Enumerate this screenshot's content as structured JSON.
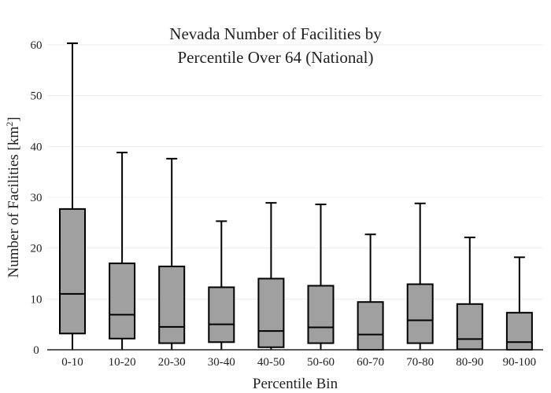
{
  "chart_data": {
    "type": "box",
    "title": [
      "Nevada Number of Facilities by",
      "Percentile Over 64 (National)"
    ],
    "xlabel": "Percentile Bin",
    "ylabel": "Number of Facilities  [km",
    "ylabel_sup": "2",
    "ylabel_close": "]",
    "ylim": [
      0,
      60
    ],
    "yticks": [
      0,
      10,
      20,
      30,
      40,
      50,
      60
    ],
    "grid": true,
    "box_color": "#a0a0a0",
    "categories": [
      "0-10",
      "10-20",
      "20-30",
      "30-40",
      "40-50",
      "50-60",
      "60-70",
      "70-80",
      "80-90",
      "90-100"
    ],
    "boxes": [
      {
        "min": 0,
        "q1": 3.2,
        "median": 11.0,
        "q3": 27.7,
        "max": 60.3
      },
      {
        "min": 0,
        "q1": 2.2,
        "median": 6.9,
        "q3": 17.0,
        "max": 38.8
      },
      {
        "min": 0,
        "q1": 1.3,
        "median": 4.5,
        "q3": 16.4,
        "max": 37.6
      },
      {
        "min": 0,
        "q1": 1.5,
        "median": 5.0,
        "q3": 12.3,
        "max": 25.3
      },
      {
        "min": 0,
        "q1": 0.5,
        "median": 3.7,
        "q3": 14.0,
        "max": 28.9
      },
      {
        "min": 0,
        "q1": 1.3,
        "median": 4.4,
        "q3": 12.6,
        "max": 28.6
      },
      {
        "min": 0,
        "q1": 0.0,
        "median": 3.0,
        "q3": 9.4,
        "max": 22.7
      },
      {
        "min": 0,
        "q1": 1.3,
        "median": 5.8,
        "q3": 12.9,
        "max": 28.8
      },
      {
        "min": 0,
        "q1": 0.1,
        "median": 2.1,
        "q3": 9.0,
        "max": 22.1
      },
      {
        "min": 0,
        "q1": 0.0,
        "median": 1.5,
        "q3": 7.3,
        "max": 18.2
      }
    ]
  }
}
